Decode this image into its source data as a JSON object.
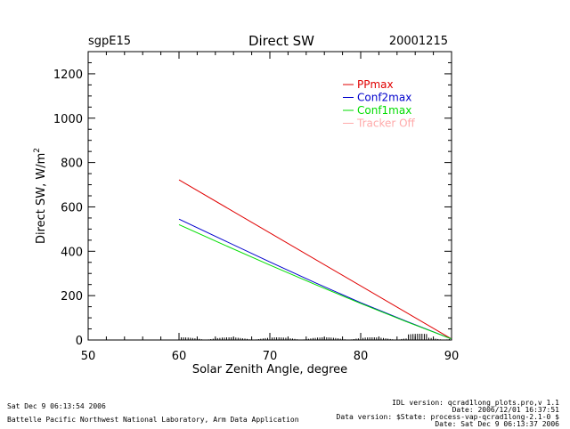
{
  "header": {
    "site": "sgpE15",
    "title": "Direct SW",
    "date": "20001215"
  },
  "footer": {
    "left_line1": "Sat Dec  9 06:13:54 2006",
    "left_line2": "Battelle Pacific Northwest National Laboratory, Arm Data Application",
    "right_line1": "IDL version: qcrad1long_plots.pro,v 1.1",
    "right_line2": "Date: 2006/12/01 16:37:51",
    "right_line3": "Data version: $State: process-vap-qcrad1long-2.1-0 $",
    "right_line4": "Date: Sat Dec  9 06:13:37 2006"
  },
  "chart_data": {
    "type": "line",
    "title": "Direct SW",
    "xlabel": "Solar Zenith Angle, degree",
    "ylabel": "Direct SW, W/m",
    "ylabel_sup": "2",
    "xlim": [
      50,
      90
    ],
    "ylim": [
      0,
      1300
    ],
    "xticks": [
      50,
      60,
      70,
      80,
      90
    ],
    "yticks": [
      0,
      200,
      400,
      600,
      800,
      1000,
      1200
    ],
    "grid": false,
    "legend_position": "top-right",
    "series": [
      {
        "name": "PPmax",
        "color": "#e00000",
        "x": [
          60,
          90
        ],
        "y": [
          722,
          5
        ]
      },
      {
        "name": "Conf2max",
        "color": "#0000cc",
        "x": [
          60,
          65,
          70,
          75,
          80,
          85,
          90
        ],
        "y": [
          545,
          448,
          352,
          258,
          168,
          85,
          5
        ]
      },
      {
        "name": "Conf1max",
        "color": "#00dd00",
        "x": [
          60,
          65,
          70,
          75,
          80,
          85,
          90
        ],
        "y": [
          520,
          428,
          338,
          250,
          165,
          83,
          5
        ]
      },
      {
        "name": "Tracker Off",
        "color": "#ffaaaa",
        "x": [],
        "y": []
      }
    ]
  }
}
